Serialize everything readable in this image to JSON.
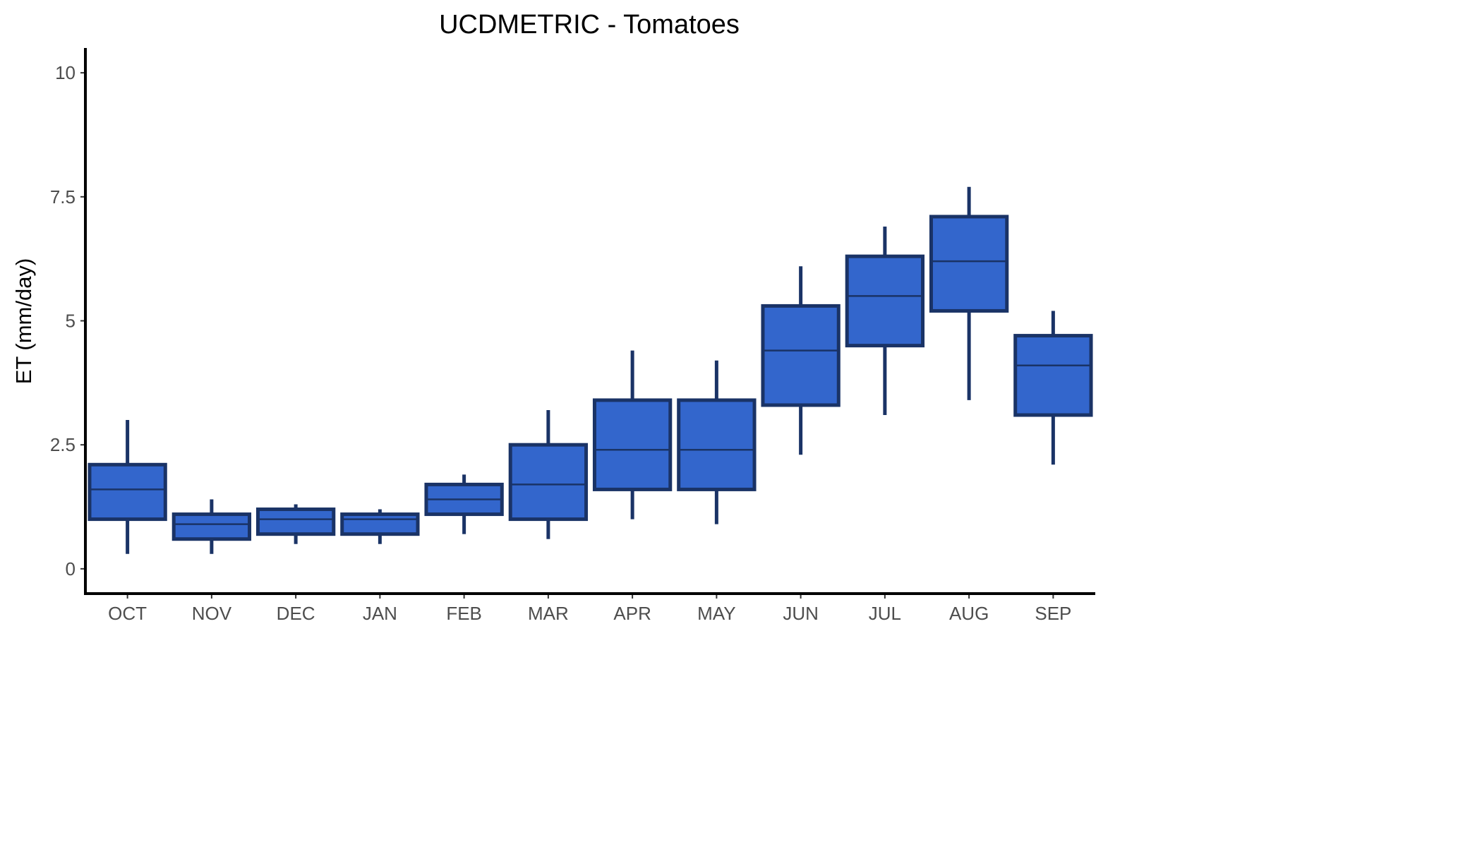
{
  "chart_data": {
    "type": "boxplot",
    "title": "UCDMETRIC - Tomatoes",
    "xlabel": "",
    "ylabel": "ET (mm/day)",
    "ylim": [
      -0.5,
      10.5
    ],
    "yticks": [
      0,
      2.5,
      5,
      7.5,
      10
    ],
    "ytick_labels": [
      "0",
      "2.5",
      "5",
      "7.5",
      "10"
    ],
    "categories": [
      "OCT",
      "NOV",
      "DEC",
      "JAN",
      "FEB",
      "MAR",
      "APR",
      "MAY",
      "JUN",
      "JUL",
      "AUG",
      "SEP"
    ],
    "boxes": [
      {
        "min": 0.3,
        "q1": 1.0,
        "median": 1.6,
        "q3": 2.1,
        "max": 3.0
      },
      {
        "min": 0.3,
        "q1": 0.6,
        "median": 0.9,
        "q3": 1.1,
        "max": 1.4
      },
      {
        "min": 0.5,
        "q1": 0.7,
        "median": 1.0,
        "q3": 1.2,
        "max": 1.3
      },
      {
        "min": 0.5,
        "q1": 0.7,
        "median": 1.0,
        "q3": 1.1,
        "max": 1.2
      },
      {
        "min": 0.7,
        "q1": 1.1,
        "median": 1.4,
        "q3": 1.7,
        "max": 1.9
      },
      {
        "min": 0.6,
        "q1": 1.0,
        "median": 1.7,
        "q3": 2.5,
        "max": 3.2
      },
      {
        "min": 1.0,
        "q1": 1.6,
        "median": 2.4,
        "q3": 3.4,
        "max": 4.4
      },
      {
        "min": 0.9,
        "q1": 1.6,
        "median": 2.4,
        "q3": 3.4,
        "max": 4.2
      },
      {
        "min": 2.3,
        "q1": 3.3,
        "median": 4.4,
        "q3": 5.3,
        "max": 6.1
      },
      {
        "min": 3.1,
        "q1": 4.5,
        "median": 5.5,
        "q3": 6.3,
        "max": 6.9
      },
      {
        "min": 3.4,
        "q1": 5.2,
        "median": 6.2,
        "q3": 7.1,
        "max": 7.7
      },
      {
        "min": 2.1,
        "q1": 3.1,
        "median": 4.1,
        "q3": 4.7,
        "max": 5.2
      }
    ],
    "grid": false,
    "legend": "none",
    "colors": {
      "box_fill": "#3366cc",
      "box_stroke": "#1a3366",
      "axis": "#000000",
      "tick_text": "#4d4d4d"
    }
  }
}
